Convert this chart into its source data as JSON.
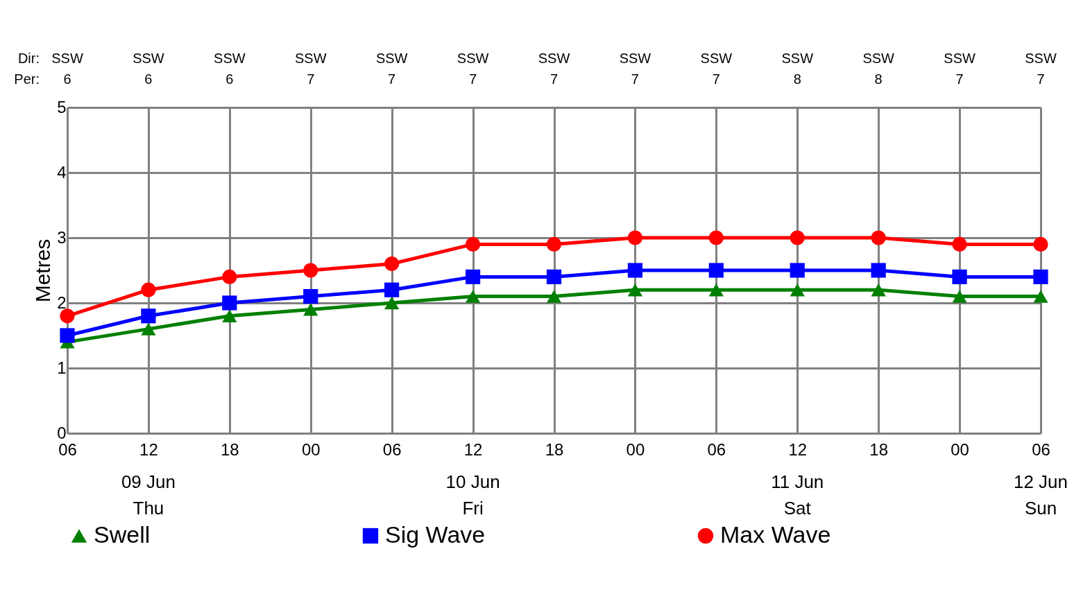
{
  "chart_data": {
    "type": "line",
    "ylabel": "Metres",
    "categories": [
      "06",
      "12",
      "18",
      "00",
      "06",
      "12",
      "18",
      "00",
      "06",
      "12",
      "18",
      "00",
      "06"
    ],
    "series": [
      {
        "name": "Swell",
        "color": "#008000",
        "marker": "triangle",
        "values": [
          1.4,
          1.6,
          1.8,
          1.9,
          2.0,
          2.1,
          2.1,
          2.2,
          2.2,
          2.2,
          2.2,
          2.1,
          2.1
        ]
      },
      {
        "name": "Sig Wave",
        "color": "#0000ff",
        "marker": "square",
        "values": [
          1.5,
          1.8,
          2.0,
          2.1,
          2.2,
          2.4,
          2.4,
          2.5,
          2.5,
          2.5,
          2.5,
          2.4,
          2.4
        ]
      },
      {
        "name": "Max Wave",
        "color": "#ff0000",
        "marker": "circle",
        "values": [
          1.8,
          2.2,
          2.4,
          2.5,
          2.6,
          2.9,
          2.9,
          3.0,
          3.0,
          3.0,
          3.0,
          2.9,
          2.9
        ]
      }
    ],
    "ylim": [
      0,
      5
    ],
    "yticks": [
      0,
      1,
      2,
      3,
      4,
      5
    ],
    "grid": true,
    "legend": "bottom",
    "line_style": "solid",
    "annotations": [
      "Dir:",
      "Per:",
      "SSW",
      "SSW",
      "SSW",
      "SSW",
      "SSW",
      "SSW",
      "SSW",
      "SSW",
      "SSW",
      "SSW",
      "SSW",
      "SSW",
      "SSW",
      "6",
      "6",
      "6",
      "7",
      "7",
      "7",
      "7",
      "7",
      "7",
      "8",
      "8",
      "7",
      "7",
      "09 Jun\nThu",
      "10 Jun\nFri",
      "11 Jun\nSat",
      "12 Jun\nSun"
    ]
  }
}
